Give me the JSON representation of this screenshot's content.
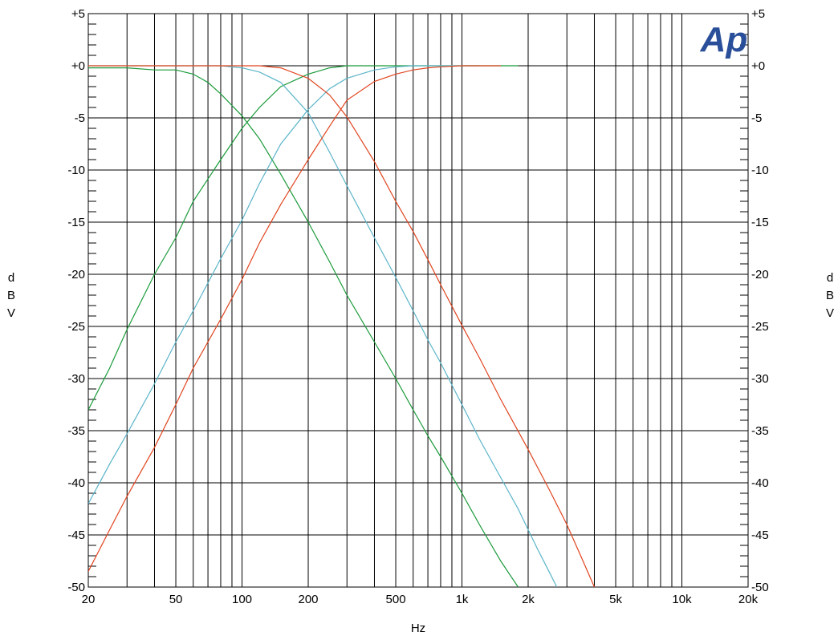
{
  "chart_data": {
    "type": "line",
    "title": "",
    "xlabel": "Hz",
    "ylabel_left": "dBV",
    "ylabel_right": "dBV",
    "x_scale": "log",
    "xlim": [
      20,
      20000
    ],
    "ylim": [
      -50,
      5
    ],
    "grid": true,
    "x_tick_labels": [
      {
        "value": 20,
        "label": "20"
      },
      {
        "value": 50,
        "label": "50"
      },
      {
        "value": 100,
        "label": "100"
      },
      {
        "value": 200,
        "label": "200"
      },
      {
        "value": 500,
        "label": "500"
      },
      {
        "value": 1000,
        "label": "1k"
      },
      {
        "value": 2000,
        "label": "2k"
      },
      {
        "value": 5000,
        "label": "5k"
      },
      {
        "value": 10000,
        "label": "10k"
      },
      {
        "value": 20000,
        "label": "20k"
      }
    ],
    "y_tick_labels": [
      {
        "value": 5,
        "label": "+5"
      },
      {
        "value": 0,
        "label": "+0"
      },
      {
        "value": -5,
        "label": "-5"
      },
      {
        "value": -10,
        "label": "-10"
      },
      {
        "value": -15,
        "label": "-15"
      },
      {
        "value": -20,
        "label": "-20"
      },
      {
        "value": -25,
        "label": "-25"
      },
      {
        "value": -30,
        "label": "-30"
      },
      {
        "value": -35,
        "label": "-35"
      },
      {
        "value": -40,
        "label": "-40"
      },
      {
        "value": -45,
        "label": "-45"
      },
      {
        "value": -50,
        "label": "-50"
      }
    ],
    "series": [
      {
        "color": "#1a9a3a",
        "x": [
          20,
          25,
          30,
          40,
          50,
          60,
          80,
          100,
          120,
          150,
          200,
          250,
          300,
          400,
          500,
          600,
          700,
          800,
          1000,
          1200,
          1500,
          1600,
          1800
        ],
        "y": [
          -33,
          -29,
          -25.3,
          -20,
          -16.5,
          -13,
          -9,
          -6,
          -4,
          -2,
          -0.8,
          -0.2,
          0,
          0,
          0,
          0,
          0,
          0,
          0,
          0,
          0,
          0,
          0
        ]
      },
      {
        "color": "#1a9a3a",
        "x": [
          20,
          30,
          40,
          50,
          60,
          70,
          80,
          100,
          120,
          150,
          200,
          250,
          300,
          400,
          500,
          600,
          700,
          800,
          1000,
          1200,
          1500,
          1800
        ],
        "y": [
          -0.2,
          -0.2,
          -0.4,
          -0.4,
          -0.8,
          -1.6,
          -2.7,
          -4.8,
          -7,
          -10.4,
          -15,
          -18.8,
          -22,
          -26.5,
          -30,
          -33,
          -35.5,
          -37.5,
          -41,
          -44,
          -47.5,
          -50
        ]
      },
      {
        "color": "#5ab4c8",
        "x": [
          20,
          25,
          30,
          40,
          50,
          60,
          80,
          100,
          120,
          150,
          200,
          250,
          300,
          400,
          500,
          600,
          700,
          800,
          1000,
          1200
        ],
        "y": [
          -42,
          -38.2,
          -35.3,
          -30.5,
          -26.5,
          -23.5,
          -18.5,
          -14.8,
          -11.3,
          -7.5,
          -4.2,
          -2.2,
          -1.2,
          -0.4,
          -0.1,
          0,
          0,
          0,
          0,
          0
        ]
      },
      {
        "color": "#5ab4c8",
        "x": [
          20,
          50,
          60,
          70,
          80,
          100,
          120,
          150,
          200,
          250,
          300,
          400,
          500,
          600,
          700,
          800,
          1000,
          1200,
          1500,
          1800,
          2000,
          2200,
          2500,
          2700
        ],
        "y": [
          0,
          0,
          0,
          0,
          0,
          -0.2,
          -0.6,
          -1.6,
          -4.5,
          -8.3,
          -11.5,
          -16.5,
          -20.3,
          -23.5,
          -26.3,
          -28.5,
          -32.5,
          -35.8,
          -39.5,
          -42.5,
          -44.5,
          -46.3,
          -48.6,
          -50
        ]
      },
      {
        "color": "#e0441e",
        "x": [
          20,
          25,
          30,
          40,
          50,
          60,
          80,
          100,
          120,
          150,
          200,
          250,
          300,
          400,
          500,
          600,
          700,
          800,
          1000,
          1200,
          1500
        ],
        "y": [
          -48.5,
          -44.5,
          -41.3,
          -36.6,
          -32.5,
          -29,
          -24.3,
          -20.5,
          -17,
          -13.3,
          -9,
          -5.8,
          -3.3,
          -1.5,
          -0.8,
          -0.4,
          -0.2,
          -0.1,
          0,
          0,
          0
        ]
      },
      {
        "color": "#e0441e",
        "x": [
          20,
          100,
          120,
          150,
          200,
          250,
          300,
          400,
          500,
          600,
          700,
          800,
          1000,
          1200,
          1500,
          2000,
          2500,
          3000,
          3500,
          4000
        ],
        "y": [
          0,
          0,
          0,
          -0.2,
          -1.2,
          -2.8,
          -4.9,
          -9.2,
          -13,
          -15.9,
          -18.6,
          -21,
          -24.9,
          -28,
          -32,
          -36.8,
          -40.7,
          -44,
          -47.2,
          -50
        ]
      }
    ]
  },
  "logo": {
    "text": "Ap",
    "color": "#2a4f9a"
  }
}
